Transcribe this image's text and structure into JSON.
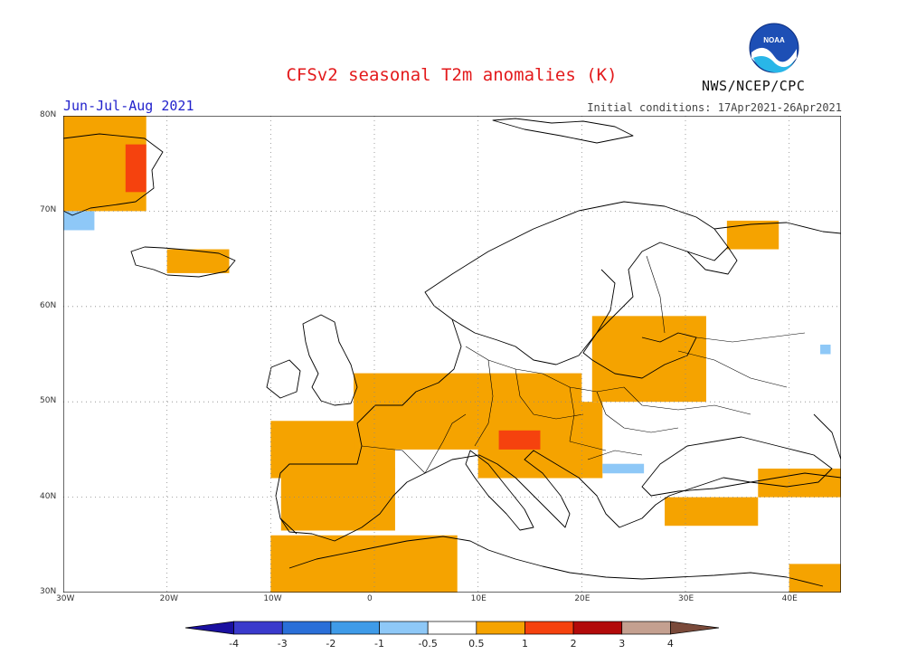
{
  "header": {
    "title": "CFSv2 seasonal T2m anomalies (K)",
    "period": "Jun-Jul-Aug 2021",
    "initial_conditions": "Initial conditions: 17Apr2021-26Apr2021",
    "agency": "NWS/NCEP/CPC",
    "logo_text": "NOAA"
  },
  "map": {
    "lon_range": [
      -30,
      45
    ],
    "lat_range": [
      30,
      80
    ],
    "lon_ticks": [
      {
        "value": -30,
        "label": "30W"
      },
      {
        "value": -20,
        "label": "20W"
      },
      {
        "value": -10,
        "label": "10W"
      },
      {
        "value": 0,
        "label": "0"
      },
      {
        "value": 10,
        "label": "10E"
      },
      {
        "value": 20,
        "label": "20E"
      },
      {
        "value": 30,
        "label": "30E"
      },
      {
        "value": 40,
        "label": "40E"
      }
    ],
    "lat_ticks": [
      {
        "value": 30,
        "label": "30N"
      },
      {
        "value": 40,
        "label": "40N"
      },
      {
        "value": 50,
        "label": "50N"
      },
      {
        "value": 60,
        "label": "60N"
      },
      {
        "value": 70,
        "label": "70N"
      },
      {
        "value": 80,
        "label": "80N"
      }
    ],
    "grid": "dotted",
    "anomaly_regions": [
      {
        "level": "0.5-1",
        "lon": [
          -30,
          -22
        ],
        "lat": [
          70,
          80
        ]
      },
      {
        "level": "1-2",
        "lon": [
          -24,
          -22
        ],
        "lat": [
          72,
          77
        ]
      },
      {
        "level": "0.5-1",
        "lon": [
          -20,
          -14
        ],
        "lat": [
          63.5,
          66
        ]
      },
      {
        "level": "0.5-1",
        "lon": [
          -10,
          2
        ],
        "lat": [
          42,
          48
        ]
      },
      {
        "level": "0.5-1",
        "lon": [
          -2,
          20
        ],
        "lat": [
          45,
          53
        ]
      },
      {
        "level": "0.5-1",
        "lon": [
          10,
          22
        ],
        "lat": [
          42,
          50
        ]
      },
      {
        "level": "1-2",
        "lon": [
          12,
          16
        ],
        "lat": [
          45,
          47
        ]
      },
      {
        "level": "0.5-1",
        "lon": [
          21,
          32
        ],
        "lat": [
          50,
          59
        ]
      },
      {
        "level": "0.5-1",
        "lon": [
          -9,
          2
        ],
        "lat": [
          36.5,
          43
        ]
      },
      {
        "level": "0.5-1",
        "lon": [
          -10,
          8
        ],
        "lat": [
          30,
          36
        ]
      },
      {
        "level": "0.5-1",
        "lon": [
          28,
          37
        ],
        "lat": [
          37,
          40
        ]
      },
      {
        "level": "0.5-1",
        "lon": [
          40,
          45
        ],
        "lat": [
          30,
          33
        ]
      },
      {
        "level": "0.5-1",
        "lon": [
          34,
          39
        ],
        "lat": [
          66,
          69
        ]
      },
      {
        "level": "0.5-1",
        "lon": [
          37,
          45
        ],
        "lat": [
          40,
          43
        ]
      },
      {
        "level": "-1--0.5",
        "lon": [
          22,
          26
        ],
        "lat": [
          42.5,
          43.5
        ]
      },
      {
        "level": "-1--0.5",
        "lon": [
          -30,
          -27
        ],
        "lat": [
          68,
          70
        ]
      },
      {
        "level": "-1--0.5",
        "lon": [
          43,
          44
        ],
        "lat": [
          55,
          56
        ]
      }
    ]
  },
  "colorbar": {
    "tick_labels": [
      "-4",
      "-3",
      "-2",
      "-1",
      "-0.5",
      "0.5",
      "1",
      "2",
      "3",
      "4"
    ],
    "colors": [
      "#1a10a0",
      "#3a3acc",
      "#2a6fd8",
      "#3f9be8",
      "#8ec8f7",
      "#ffffff",
      "#f5a300",
      "#f5420e",
      "#b20a0a",
      "#c4a090",
      "#7a4a3a"
    ]
  }
}
